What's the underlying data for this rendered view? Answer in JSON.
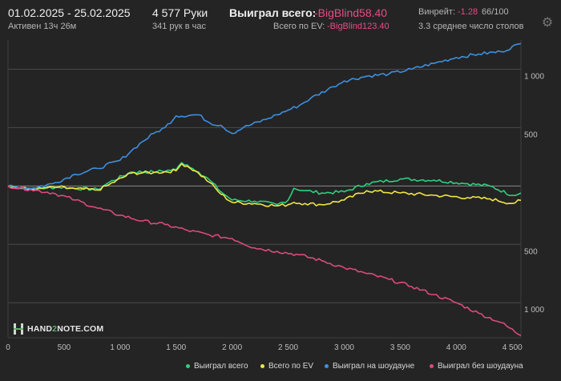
{
  "header": {
    "date_range": "01.02.2025 - 25.02.2025",
    "active": "Активен 13ч 26м",
    "hands": "4 577 Руки",
    "hands_per_hour": "341 рук в час",
    "won_label": "Выиграл всего:",
    "won_value": "-BigBlind58.40",
    "ev_label": "Всего по EV:",
    "ev_value": "-BigBlind123.40",
    "winrate_label": "Винрейт:",
    "winrate_value": "-1.28",
    "winrate_ratio": "66/100",
    "tables": "3.3 среднее число столов",
    "settings_icon": "gear-icon"
  },
  "logo": {
    "prefix": "HAND",
    "mid": "2",
    "suffix": "NOTE.COM"
  },
  "chart_data": {
    "type": "line",
    "x_tick_labels": [
      "0",
      "500",
      "1 000",
      "1 500",
      "2 000",
      "2 500",
      "3 000",
      "3 500",
      "4 000",
      "4 500"
    ],
    "y_tick_labels": [
      "1 000",
      "500",
      "500",
      "1 000"
    ],
    "xlim": [
      0,
      4577
    ],
    "ylim": [
      -1300,
      1250
    ],
    "grid": true,
    "legend_position": "bottom",
    "series": [
      {
        "name": "Выиграл всего",
        "color": "#2fcf7f",
        "x": [
          0,
          200,
          300,
          450,
          600,
          800,
          900,
          1100,
          1300,
          1500,
          1550,
          1600,
          1700,
          1800,
          1900,
          2000,
          2200,
          2400,
          2500,
          2550,
          2650,
          2800,
          3000,
          3200,
          3500,
          3800,
          4100,
          4300,
          4500,
          4577
        ],
        "y": [
          0,
          -30,
          -20,
          -10,
          -20,
          -30,
          30,
          120,
          120,
          140,
          200,
          180,
          120,
          50,
          -50,
          -120,
          -130,
          -160,
          -120,
          -20,
          -40,
          -60,
          -50,
          20,
          60,
          50,
          20,
          0,
          -80,
          -60
        ]
      },
      {
        "name": "Всего по EV",
        "color": "#f0e642",
        "x": [
          0,
          200,
          300,
          450,
          600,
          800,
          900,
          1100,
          1300,
          1500,
          1550,
          1600,
          1700,
          1800,
          1900,
          2000,
          2200,
          2400,
          2500,
          2550,
          2650,
          2800,
          3000,
          3200,
          3500,
          3800,
          4100,
          4300,
          4500,
          4577
        ],
        "y": [
          0,
          -30,
          -20,
          -10,
          -25,
          -35,
          10,
          110,
          115,
          130,
          190,
          170,
          110,
          30,
          -70,
          -140,
          -150,
          -170,
          -160,
          -140,
          -150,
          -160,
          -120,
          -40,
          -60,
          -80,
          -100,
          -110,
          -150,
          -123
        ]
      },
      {
        "name": "Выиграл на шоудауне",
        "color": "#3d8fdf",
        "x": [
          0,
          200,
          400,
          600,
          800,
          1000,
          1100,
          1200,
          1300,
          1400,
          1500,
          1700,
          1800,
          1900,
          2000,
          2100,
          2300,
          2400,
          2500,
          2600,
          2700,
          2900,
          3000,
          3200,
          3400,
          3600,
          3800,
          4000,
          4200,
          4400,
          4577
        ],
        "y": [
          0,
          -20,
          20,
          100,
          150,
          220,
          300,
          380,
          450,
          500,
          600,
          610,
          540,
          520,
          450,
          500,
          570,
          610,
          650,
          690,
          750,
          850,
          900,
          940,
          960,
          1000,
          1050,
          1100,
          1130,
          1150,
          1220
        ]
      },
      {
        "name": "Выиграл без шоудауна",
        "color": "#d94b7a",
        "x": [
          0,
          200,
          400,
          600,
          800,
          1000,
          1200,
          1400,
          1600,
          1800,
          2000,
          2200,
          2400,
          2600,
          2800,
          3000,
          3200,
          3400,
          3600,
          3800,
          4000,
          4200,
          4400,
          4577
        ],
        "y": [
          0,
          -30,
          -60,
          -120,
          -190,
          -250,
          -300,
          -330,
          -380,
          -420,
          -450,
          -530,
          -560,
          -590,
          -640,
          -700,
          -750,
          -800,
          -860,
          -930,
          -1000,
          -1090,
          -1170,
          -1280
        ]
      }
    ]
  }
}
